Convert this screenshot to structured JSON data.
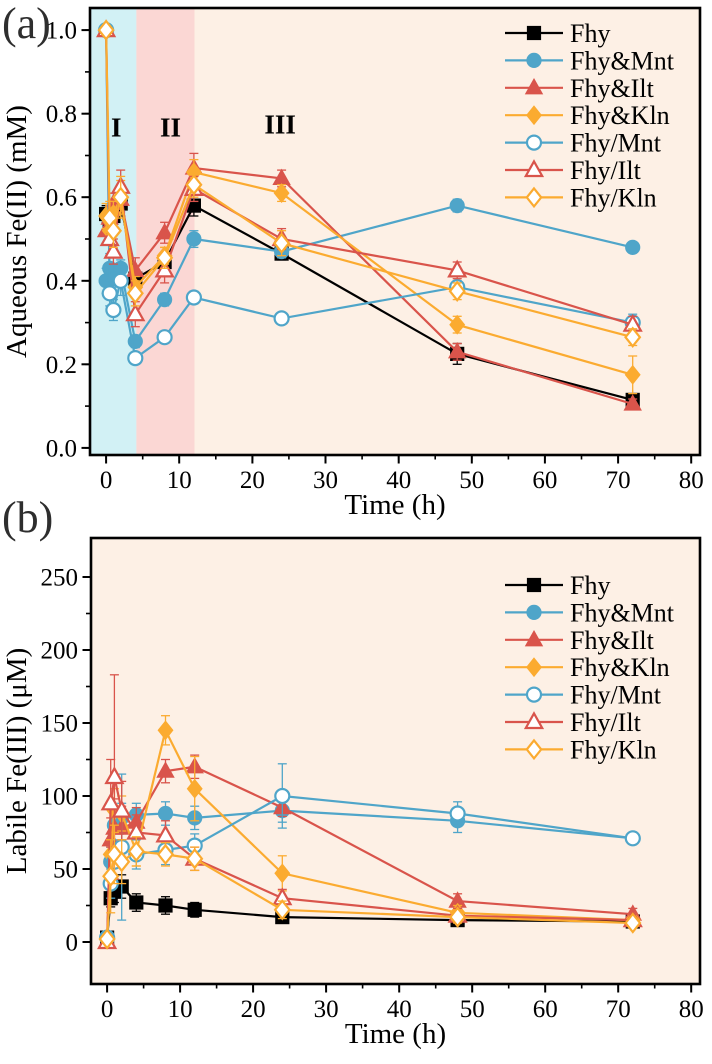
{
  "figure": {
    "panel_a_label": "(a)",
    "panel_b_label": "(b)"
  },
  "colors": {
    "background": "#ffffff",
    "plot_bg": "#fdf0e5",
    "phase1_fill": "#d2f1f5",
    "phase2_fill": "#fbd7d4",
    "black": "#000000",
    "blue": "#4fa5c9",
    "red": "#d9544b",
    "orange": "#fbab30"
  },
  "chart_data": [
    {
      "id": "a",
      "type": "line",
      "panel_label": "(a)",
      "xlabel": "Time (h)",
      "ylabel": "Aqueous Fe(II) (mM)",
      "xlim": [
        -2.2,
        81.2
      ],
      "ylim": [
        -0.017,
        1.053
      ],
      "x_ticks": [
        0,
        10,
        20,
        30,
        40,
        50,
        60,
        70,
        80
      ],
      "x_tick_labels": [
        "0",
        "10",
        "20",
        "30",
        "40",
        "50",
        "60",
        "70",
        "80"
      ],
      "x_minor_step": 5,
      "y_ticks": [
        0.0,
        0.2,
        0.4,
        0.6,
        0.8,
        1.0
      ],
      "y_tick_labels": [
        "0.0",
        "0.2",
        "0.4",
        "0.6",
        "0.8",
        "1.0"
      ],
      "y_minor_step": 0.1,
      "grid": false,
      "legend_position": "top-right",
      "regions": [
        {
          "label": "I",
          "x0": null,
          "x1": 4.15,
          "color": "phase1_fill"
        },
        {
          "label": "II",
          "x0": 4.15,
          "x1": 12.1,
          "color": "phase2_fill"
        }
      ],
      "region_labels": [
        {
          "text": "I",
          "x": 1.4,
          "y": 0.745
        },
        {
          "text": "II",
          "x": 8.8,
          "y": 0.745
        },
        {
          "text": "III",
          "x": 23.8,
          "y": 0.752
        }
      ],
      "x": [
        0,
        0.5,
        1,
        2,
        4,
        8,
        12,
        24,
        48,
        72
      ],
      "series": [
        {
          "name": "Fhy",
          "marker": "square",
          "open": false,
          "color": "black",
          "values": [
            0.56,
            0.53,
            0.555,
            0.585,
            0.405,
            0.445,
            0.58,
            0.465,
            0.225,
            0.115
          ],
          "err": [
            0.02,
            0.02,
            0.015,
            0.03,
            0.02,
            0.02,
            0.025,
            0.015,
            0.025,
            0.01
          ]
        },
        {
          "name": "Fhy&Mnt",
          "marker": "circle",
          "open": false,
          "color": "blue",
          "values": [
            0.4,
            0.43,
            0.405,
            0.43,
            0.255,
            0.355,
            0.5,
            0.47,
            0.58,
            0.48
          ],
          "err": [
            0.03,
            0.035,
            0.02,
            0.02,
            0.015,
            0.015,
            0.02,
            0.015,
            0.015,
            0.012
          ]
        },
        {
          "name": "Fhy&Ilt",
          "marker": "triangle",
          "open": false,
          "color": "red",
          "values": [
            0.52,
            0.55,
            0.585,
            0.595,
            0.425,
            0.515,
            0.67,
            0.645,
            0.23,
            0.105
          ],
          "err": [
            0.03,
            0.03,
            0.025,
            0.03,
            0.03,
            0.025,
            0.035,
            0.02,
            0.02,
            0.012
          ]
        },
        {
          "name": "Fhy&Kln",
          "marker": "diamond",
          "open": false,
          "color": "orange",
          "values": [
            0.555,
            0.52,
            0.56,
            0.6,
            0.385,
            0.46,
            0.66,
            0.61,
            0.295,
            0.175
          ],
          "err": [
            0.03,
            0.025,
            0.03,
            0.04,
            0.025,
            0.02,
            0.03,
            0.02,
            0.02,
            0.045
          ]
        },
        {
          "name": "Fhy/Mnt",
          "marker": "circle",
          "open": true,
          "color": "blue",
          "values": [
            1.0,
            0.37,
            0.33,
            0.4,
            0.215,
            0.265,
            0.36,
            0.31,
            0.385,
            0.3
          ],
          "err": [
            0,
            0.03,
            0.025,
            0.035,
            0.012,
            0.012,
            0.015,
            0.012,
            0.015,
            0.02
          ]
        },
        {
          "name": "Fhy/Ilt",
          "marker": "triangle",
          "open": true,
          "color": "red",
          "values": [
            1.0,
            0.5,
            0.47,
            0.625,
            0.32,
            0.425,
            0.62,
            0.5,
            0.425,
            0.295
          ],
          "err": [
            0,
            0.04,
            0.03,
            0.04,
            0.03,
            0.03,
            0.03,
            0.025,
            0.02,
            0.02
          ]
        },
        {
          "name": "Fhy/Kln",
          "marker": "diamond",
          "open": true,
          "color": "orange",
          "values": [
            1.0,
            0.55,
            0.52,
            0.6,
            0.37,
            0.455,
            0.63,
            0.49,
            0.375,
            0.265
          ],
          "err": [
            0,
            0.04,
            0.04,
            0.05,
            0.03,
            0.025,
            0.03,
            0.03,
            0.02,
            0.02
          ]
        }
      ],
      "layout": {
        "svg": "chart-a",
        "plot": {
          "l": 90,
          "r": 700,
          "t": 8,
          "b": 455
        },
        "xlabel_y": 514,
        "ylabel_x": 26,
        "legend": {
          "x_line0": 505,
          "x_line1": 563,
          "x_text": 570,
          "y0": 33,
          "dy": 27.4
        }
      }
    },
    {
      "id": "b",
      "type": "line",
      "panel_label": "(b)",
      "xlabel": "Time (h)",
      "ylabel": "Labile Fe(III) (μM)",
      "xlim": [
        -2.2,
        81.2
      ],
      "ylim": [
        -28.8,
        276.7
      ],
      "x_ticks": [
        0,
        10,
        20,
        30,
        40,
        50,
        60,
        70,
        80
      ],
      "x_tick_labels": [
        "0",
        "10",
        "20",
        "30",
        "40",
        "50",
        "60",
        "70",
        "80"
      ],
      "x_minor_step": 5,
      "y_ticks": [
        0,
        50,
        100,
        150,
        200,
        250
      ],
      "y_tick_labels": [
        "0",
        "50",
        "100",
        "150",
        "200",
        "250"
      ],
      "y_minor_step": 25,
      "grid": false,
      "legend_position": "top-right",
      "regions": [],
      "region_labels": [],
      "x": [
        0,
        0.5,
        1,
        2,
        4,
        8,
        12,
        24,
        48,
        72
      ],
      "series": [
        {
          "name": "Fhy",
          "marker": "square",
          "open": false,
          "color": "black",
          "values": [
            3,
            30,
            35,
            38,
            27,
            25,
            22,
            17,
            15,
            14
          ],
          "err": [
            2,
            6,
            8,
            8,
            6,
            6,
            5,
            4,
            3,
            3
          ]
        },
        {
          "name": "Fhy&Mnt",
          "marker": "circle",
          "open": false,
          "color": "blue",
          "values": [
            3,
            55,
            80,
            85,
            87,
            88,
            85,
            90,
            83,
            71
          ],
          "err": [
            2,
            10,
            12,
            10,
            8,
            8,
            8,
            8,
            8,
            4
          ]
        },
        {
          "name": "Fhy&Ilt",
          "marker": "triangle",
          "open": false,
          "color": "red",
          "values": [
            0,
            70,
            78,
            78,
            82,
            117,
            120,
            92,
            28,
            19
          ],
          "err": [
            1,
            15,
            20,
            15,
            10,
            8,
            8,
            6,
            5,
            4
          ]
        },
        {
          "name": "Fhy&Kln",
          "marker": "diamond",
          "open": false,
          "color": "orange",
          "values": [
            2,
            60,
            90,
            88,
            62,
            145,
            105,
            47,
            20,
            15
          ],
          "err": [
            2,
            10,
            15,
            12,
            10,
            10,
            22,
            12,
            5,
            4
          ]
        },
        {
          "name": "Fhy/Mnt",
          "marker": "circle",
          "open": true,
          "color": "blue",
          "values": [
            3,
            40,
            55,
            65,
            60,
            63,
            66,
            100,
            88,
            71
          ],
          "err": [
            2,
            10,
            15,
            50,
            10,
            10,
            8,
            22,
            8,
            4
          ]
        },
        {
          "name": "Fhy/Ilt",
          "marker": "triangle",
          "open": true,
          "color": "red",
          "values": [
            0,
            95,
            113,
            90,
            75,
            73,
            57,
            30,
            18,
            15
          ],
          "err": [
            1,
            30,
            70,
            20,
            12,
            10,
            8,
            6,
            5,
            4
          ]
        },
        {
          "name": "Fhy/Kln",
          "marker": "diamond",
          "open": true,
          "color": "orange",
          "values": [
            2,
            45,
            60,
            55,
            62,
            60,
            57,
            22,
            17,
            13
          ],
          "err": [
            2,
            25,
            20,
            15,
            10,
            8,
            8,
            6,
            4,
            3
          ]
        }
      ],
      "layout": {
        "svg": "chart-b",
        "plot": {
          "l": 91,
          "r": 700,
          "t": 8,
          "b": 454
        },
        "xlabel_y": 513,
        "ylabel_x": 26,
        "legend": {
          "x_line0": 505,
          "x_line1": 563,
          "x_text": 570,
          "y0": 55,
          "dy": 27.4
        }
      }
    }
  ]
}
